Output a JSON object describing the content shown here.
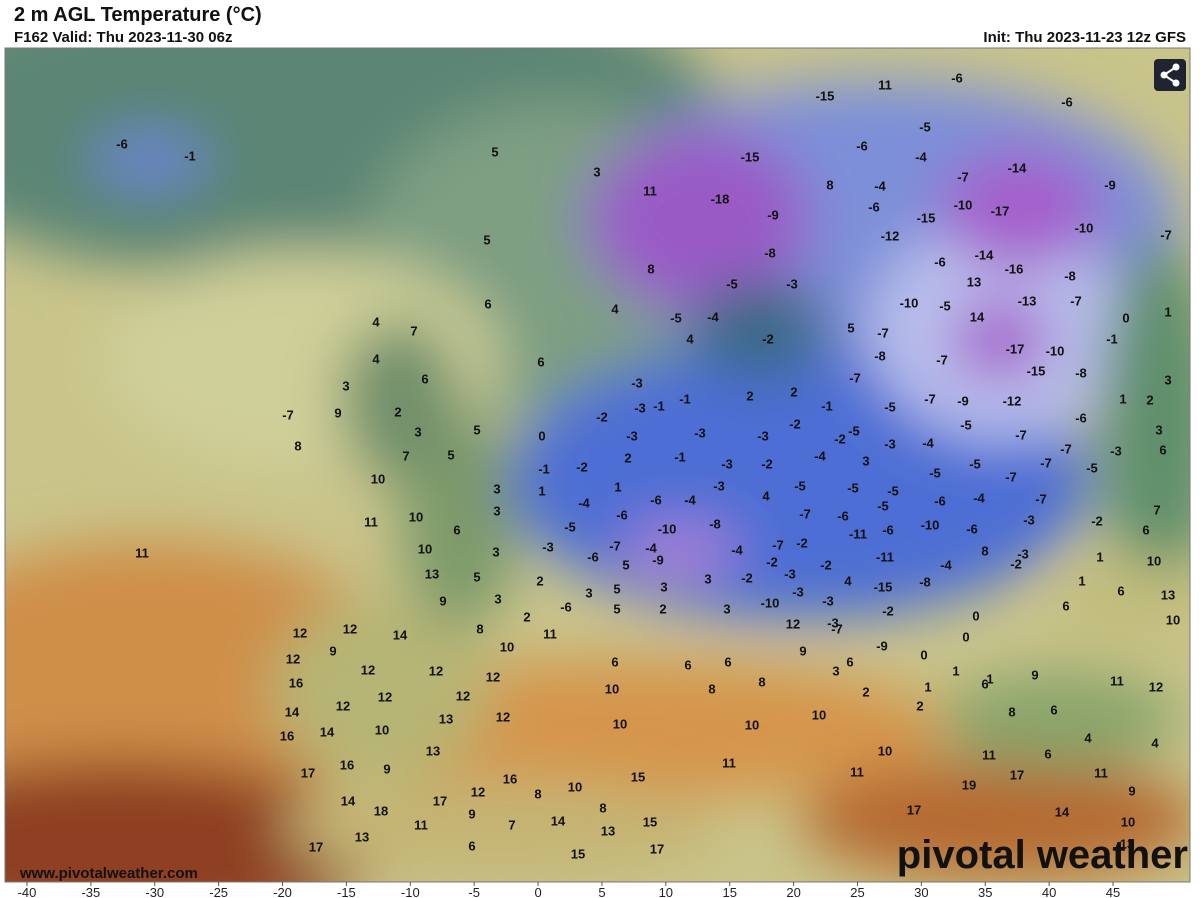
{
  "header": {
    "title": "2 m AGL Temperature (°C)",
    "valid": "F162 Valid: Thu 2023-11-30 06z",
    "init": "Init: Thu 2023-11-23 12z GFS"
  },
  "map": {
    "url": "www.pivotalweather.com",
    "watermark": "pivotal weather",
    "xticks": [
      -40,
      -35,
      -30,
      -25,
      -20,
      -15,
      -10,
      -5,
      0,
      5,
      10,
      15,
      20,
      25,
      30,
      35,
      40,
      45
    ],
    "labels": [
      -6,
      -1,
      5,
      3,
      5,
      6,
      6,
      4,
      4,
      7,
      6,
      3,
      2,
      9,
      -7,
      8,
      3,
      5,
      7,
      5,
      10,
      11,
      10,
      11,
      10,
      13,
      9,
      6,
      3,
      3,
      3,
      5,
      3,
      8,
      2,
      2,
      10,
      11,
      12,
      12,
      14,
      12,
      9,
      16,
      12,
      12,
      12,
      12,
      12,
      12,
      14,
      14,
      10,
      16,
      13,
      12,
      13,
      16,
      9,
      17,
      14,
      18,
      17,
      12,
      16,
      8,
      10,
      8,
      15,
      9,
      7,
      14,
      11,
      13,
      17,
      6,
      15,
      13,
      15,
      17,
      6,
      10,
      10,
      6,
      8,
      6,
      8,
      10,
      11,
      10,
      10,
      11,
      17,
      11,
      17,
      19,
      8,
      6,
      6,
      4,
      11,
      12,
      4,
      11,
      9,
      14,
      10,
      13,
      9,
      6,
      1,
      -15,
      11,
      -6,
      -6,
      -5,
      -15,
      -6,
      -4,
      -7,
      -14,
      -9,
      11,
      -18,
      -9,
      8,
      -4,
      -6,
      -12,
      -15,
      -10,
      -17,
      -10,
      -7,
      -14,
      -16,
      -6,
      -8,
      13,
      -13,
      -7,
      -10,
      -5,
      14,
      -17,
      -10,
      -15,
      -8,
      0,
      1,
      -1,
      -6,
      -12,
      -9,
      -7,
      -5,
      -7,
      -8,
      -7,
      5,
      -7,
      8,
      4,
      -4,
      -5,
      -5,
      -8,
      -3,
      -2,
      4,
      -3,
      -1,
      -1,
      2,
      2,
      -1,
      -3,
      -5,
      -4,
      -5,
      -7,
      -7,
      -5,
      -3,
      3,
      6,
      3,
      2,
      1,
      -3,
      -2,
      -3,
      -3,
      -3,
      -2,
      -2,
      -4,
      3,
      -3,
      -2,
      0,
      -2,
      2,
      -1,
      -1,
      1,
      -4,
      1,
      -3,
      4,
      -5,
      -5,
      -5,
      -5,
      -5,
      -7,
      -7,
      -6,
      -4,
      -7,
      -6,
      -4,
      -5,
      -6,
      -10,
      -8,
      -7,
      -6,
      -5,
      -10,
      -6,
      -3,
      -2,
      7,
      6,
      -3,
      -6,
      -7,
      -4,
      -4,
      -7,
      -2,
      -11,
      -6,
      8,
      -3,
      1,
      -2,
      10,
      -9,
      -2,
      -11,
      -4,
      -2,
      1,
      6,
      13,
      10,
      6,
      -6,
      3,
      5,
      5,
      3,
      -2,
      -3,
      4,
      -15,
      -8,
      3,
      3,
      -10,
      -3,
      -3,
      2,
      5,
      -3,
      -2,
      0,
      12,
      -7,
      -9,
      0,
      0,
      9,
      3,
      6,
      1,
      2,
      2,
      1
    ]
  }
}
